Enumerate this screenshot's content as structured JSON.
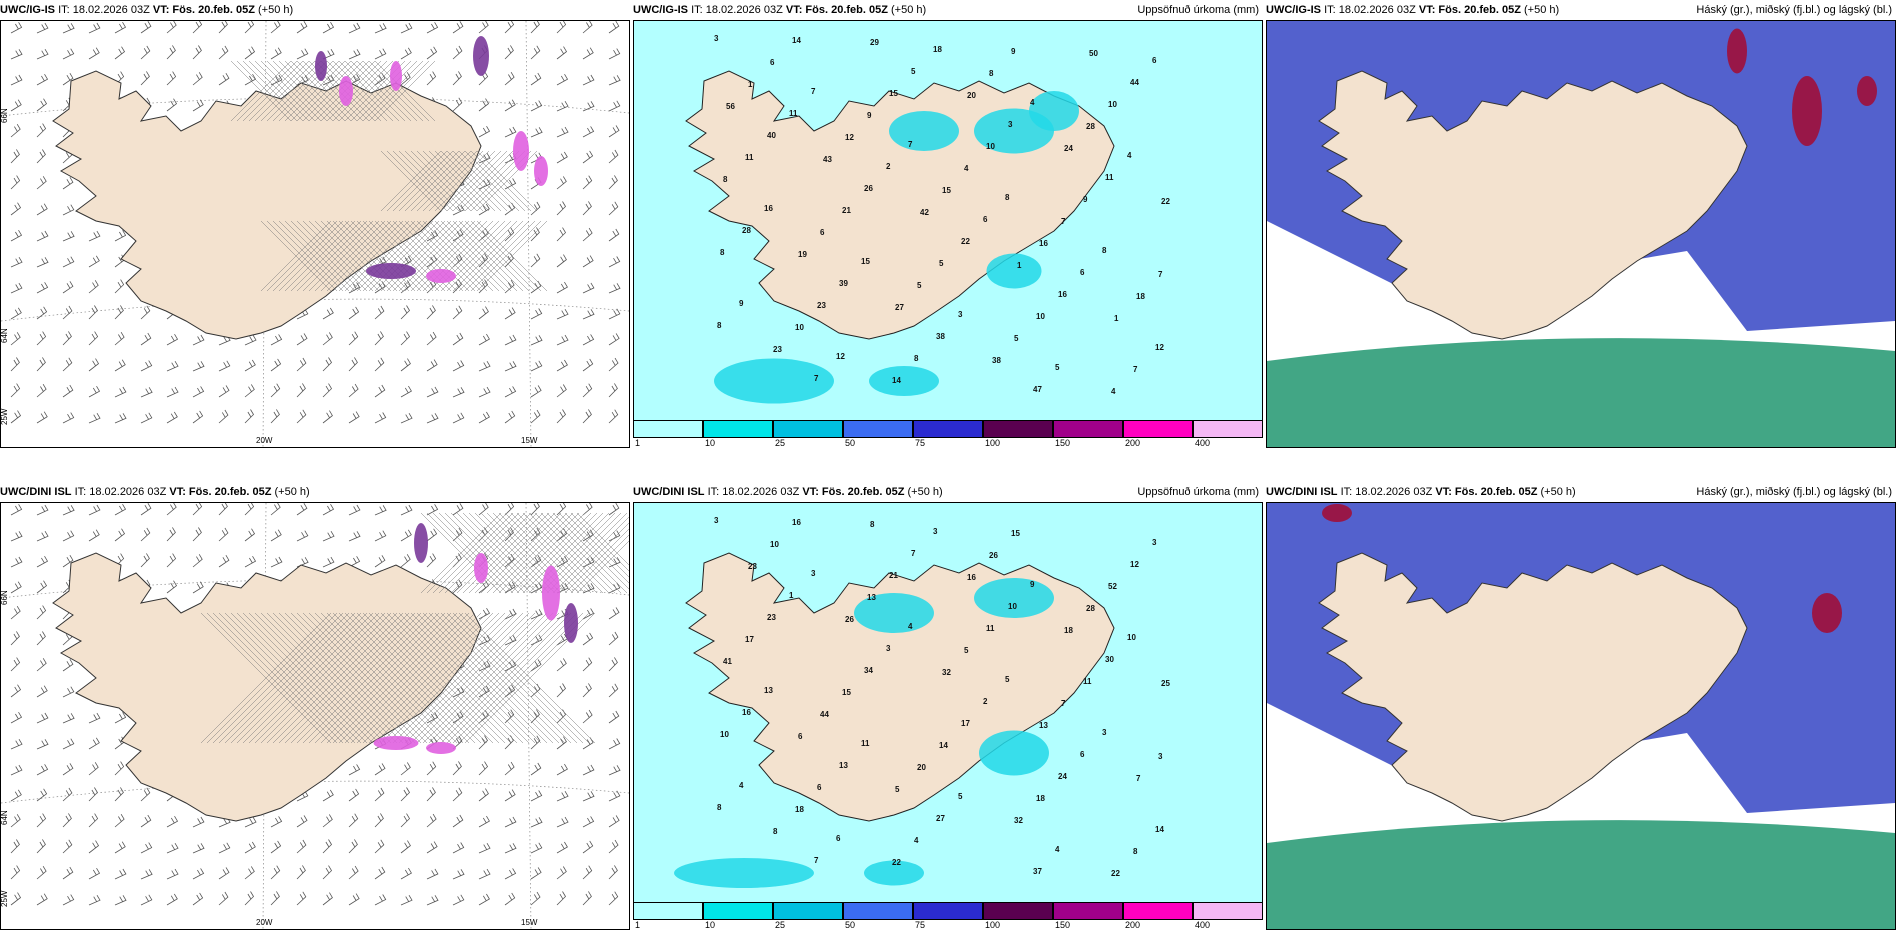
{
  "common": {
    "it": "IT: 18.02.2026 03Z",
    "vt": "VT: Fös. 20.feb. 05Z",
    "lead": "(+50 h)"
  },
  "rows": [
    {
      "model": "UWC/IG-IS",
      "panels": {
        "wind": {
          "title_right": ""
        },
        "precip": {
          "title_right": "Uppsöfnuð úrkoma (mm)",
          "labels": [
            "3",
            "7",
            "7",
            "8",
            "8",
            "9",
            "12",
            "18",
            "4",
            "4",
            "16",
            "15",
            "3",
            "5",
            "6",
            "11",
            "2",
            "6",
            "6",
            "8",
            "7",
            "5",
            "3",
            "11",
            "28",
            "39",
            "38",
            "47",
            "44",
            "40",
            "26",
            "22",
            "16",
            "12",
            "14",
            "15",
            "10",
            "9",
            "8",
            "23",
            "8",
            "9",
            "10",
            "11",
            "21",
            "5",
            "10",
            "7",
            "6",
            "9",
            "4",
            "7",
            "7",
            "10",
            "14",
            "8",
            "28",
            "8",
            "6",
            "5",
            "5",
            "4",
            "1",
            "12",
            "15",
            "16",
            "18",
            "23",
            "29",
            "20",
            "24",
            "22",
            "19",
            "27",
            "38",
            "50",
            "56",
            "43",
            "42",
            "1",
            "1"
          ]
        },
        "cloud": {
          "title_right": "Háský (gr.), miðský (fj.bl.) og lágský (bl.)"
        }
      }
    },
    {
      "model": "UWC/DINI ISL",
      "panels": {
        "wind": {
          "title_right": ""
        },
        "precip": {
          "title_right": "Uppsöfnuð úrkoma (mm)",
          "labels": [
            "3",
            "3",
            "4",
            "5",
            "3",
            "4",
            "6",
            "3",
            "9",
            "10",
            "13",
            "11",
            "5",
            "4",
            "3",
            "1",
            "3",
            "2",
            "6",
            "8",
            "7",
            "7",
            "10",
            "30",
            "16",
            "13",
            "27",
            "37",
            "12",
            "23",
            "34",
            "17",
            "24",
            "14",
            "16",
            "21",
            "11",
            "11",
            "10",
            "6",
            "4",
            "15",
            "52",
            "17",
            "15",
            "14",
            "18",
            "8",
            "10",
            "13",
            "5",
            "7",
            "3",
            "18",
            "22",
            "26",
            "28",
            "41",
            "44",
            "20",
            "32",
            "22",
            "23",
            "26",
            "32",
            "13",
            "7",
            "8",
            "8",
            "16",
            "18",
            "25",
            "6",
            "5"
          ]
        },
        "cloud": {
          "title_right": "Háský (gr.), miðský (fj.bl.) og lágský (bl.)"
        }
      }
    }
  ],
  "colorbar": {
    "ticks": [
      "1",
      "10",
      "25",
      "50",
      "75",
      "100",
      "150",
      "200",
      "400"
    ],
    "colors": [
      "#b3ffff",
      "#00e5e8",
      "#00c0e0",
      "#3b6cf2",
      "#2b2bd0",
      "#5a0050",
      "#a0008a",
      "#ff00c0",
      "#f5b8f5"
    ]
  },
  "axis_labels": {
    "lon": [
      "20W",
      "15W"
    ],
    "lat": [
      "66N",
      "64N"
    ],
    "lat_left": [
      "66N",
      "64N",
      "25W"
    ]
  },
  "colors": {
    "land": "#f3e2cf",
    "sea_precip": "#b3ffff",
    "cloud_high_blue": "#4050c8",
    "cloud_low_green": "#2e9c78",
    "cloud_red": "#a0103a",
    "wind_pink": "#e060e0",
    "wind_purple": "#7a3a9a"
  }
}
